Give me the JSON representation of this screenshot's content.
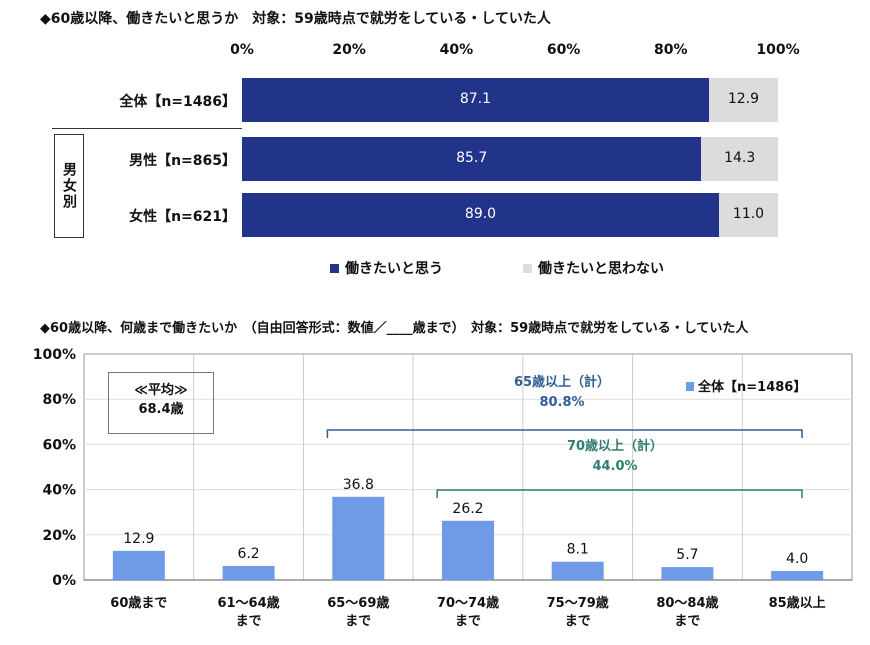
{
  "chart1": {
    "title": "◆60歳以降、働きたいと思うか　対象：59歳時点で就労をしている・していた人",
    "ticks": [
      "0%",
      "20%",
      "40%",
      "60%",
      "80%",
      "100%"
    ],
    "group_label": "男女別",
    "legend": [
      "働きたいと思う",
      "働きたいと思わない"
    ],
    "colors": {
      "yes": "#22338a",
      "no": "#dcdcdc"
    }
  },
  "chart2": {
    "title": "◆60歳以降、何歳まで働きたいか　（自由回答形式：数値／____歳まで）　対象：59歳時点で就労をしている・していた人",
    "y_ticks": [
      "100%",
      "80%",
      "60%",
      "40%",
      "20%",
      "0%"
    ],
    "average_label": "≪平均≫",
    "average_value": "68.4歳",
    "legend": "全体【n=1486】",
    "bracket65_label": "65歳以上（計）",
    "bracket65_value": "80.8%",
    "bracket70_label": "70歳以上（計）",
    "bracket70_value": "44.0%",
    "colors": {
      "bar": "#6f9ae8",
      "bracket65": "#2f5f95",
      "bracket70": "#2f7d6f"
    }
  },
  "chart_data": [
    {
      "type": "bar",
      "orientation": "horizontal",
      "stacked": true,
      "title": "◆60歳以降、働きたいと思うか　対象：59歳時点で就労をしている・していた人",
      "categories": [
        "全体【n=1486】",
        "男性【n=865】",
        "女性【n=621】"
      ],
      "series": [
        {
          "name": "働きたいと思う",
          "values": [
            87.1,
            85.7,
            89.0
          ]
        },
        {
          "name": "働きたいと思わない",
          "values": [
            12.9,
            14.3,
            11.0
          ]
        }
      ],
      "xlim": [
        0,
        100
      ],
      "legend": "bottom"
    },
    {
      "type": "bar",
      "title": "◆60歳以降、何歳まで働きたいか　（自由回答形式：数値／____歳まで）　対象：59歳時点で就労をしている・していた人",
      "categories": [
        "60歳まで",
        "61～64歳 まで",
        "65～69歳 まで",
        "70～74歳 まで",
        "75～79歳 まで",
        "80～84歳 まで",
        "85歳以上"
      ],
      "category_lines": [
        [
          "60歳まで"
        ],
        [
          "61～64歳",
          "まで"
        ],
        [
          "65～69歳",
          "まで"
        ],
        [
          "70～74歳",
          "まで"
        ],
        [
          "75～79歳",
          "まで"
        ],
        [
          "80～84歳",
          "まで"
        ],
        [
          "85歳以上"
        ]
      ],
      "series": [
        {
          "name": "全体【n=1486】",
          "values": [
            12.9,
            6.2,
            36.8,
            26.2,
            8.1,
            5.7,
            4.0
          ]
        }
      ],
      "ylim": [
        0,
        100
      ],
      "legend": "top-right"
    }
  ]
}
